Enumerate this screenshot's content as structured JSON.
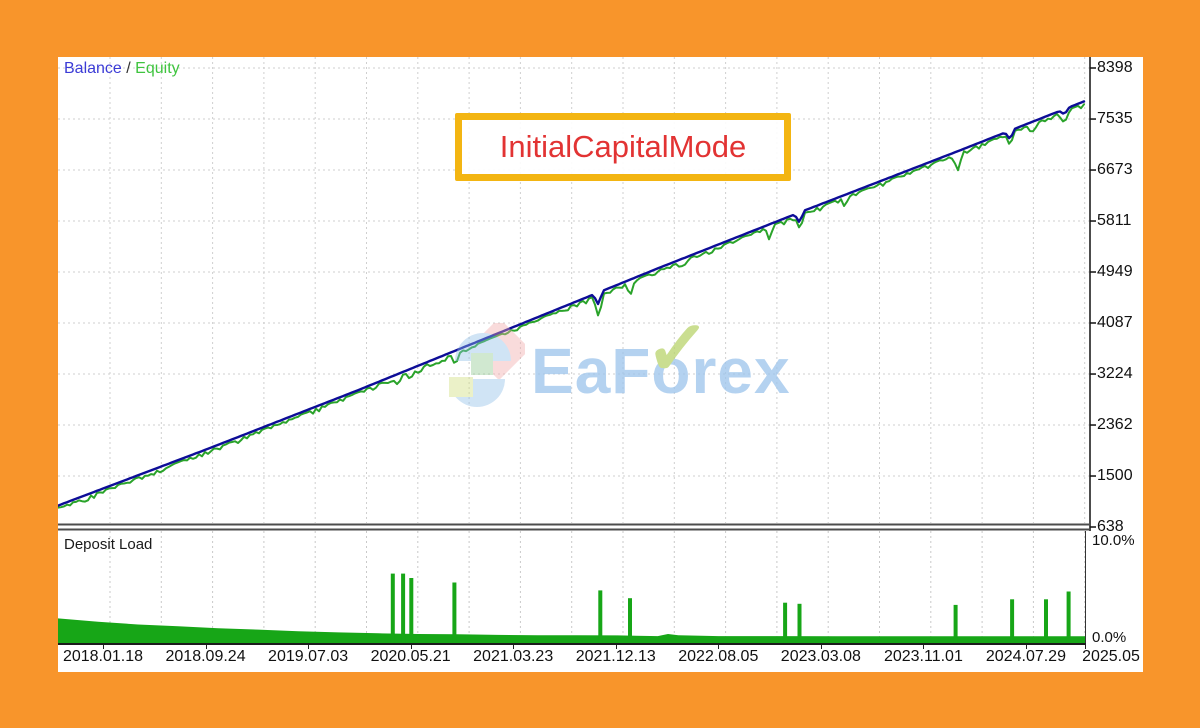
{
  "page": {
    "frame_color": "#f8952b",
    "panel_bg": "#ffffff"
  },
  "legend": {
    "balance": "Balance",
    "separator": " / ",
    "equity": "Equity",
    "balance_color": "#3b3bd6",
    "equity_color": "#3fc43f"
  },
  "overlay_box": {
    "label": "InitialCapitalMode",
    "text_color": "#e23333",
    "border_color": "#f3b512"
  },
  "watermark": {
    "part1": "EaF",
    "o_char": "o",
    "check_char": "✓",
    "part2": "rex",
    "text_color": "#9cc4ec",
    "check_color": "#b9d36b"
  },
  "deposit_panel": {
    "label": "Deposit Load",
    "max_label": "10.0%",
    "min_label": "0.0%"
  },
  "chart_data": {
    "type": "line",
    "title": "",
    "ylabel": "",
    "xlabel": "",
    "ylim": [
      638,
      8398
    ],
    "grid": true,
    "y_ticks": [
      8398,
      7535,
      6673,
      5811,
      4949,
      4087,
      3224,
      2362,
      1500,
      638
    ],
    "x_ticks": [
      "2018.01.18",
      "2018.09.24",
      "2019.07.03",
      "2020.05.21",
      "2021.03.23",
      "2021.12.13",
      "2022.08.05",
      "2023.03.08",
      "2023.11.01",
      "2024.07.29",
      "2025.05"
    ],
    "series": [
      {
        "name": "Balance",
        "color": "#0d0d97",
        "anchors": [
          [
            0,
            1000
          ],
          [
            0.146,
            1960
          ],
          [
            0.292,
            2950
          ],
          [
            0.438,
            3980
          ],
          [
            0.584,
            5010
          ],
          [
            0.73,
            6010
          ],
          [
            0.876,
            6990
          ],
          [
            1.0,
            7840
          ]
        ],
        "dips": [
          [
            0.526,
            200
          ],
          [
            0.722,
            170
          ],
          [
            0.927,
            150
          ],
          [
            0.98,
            90
          ]
        ]
      },
      {
        "name": "Equity",
        "color": "#2aa32a",
        "offset": -35,
        "dips": [
          [
            0.331,
            160
          ],
          [
            0.343,
            130
          ],
          [
            0.352,
            110
          ],
          [
            0.387,
            220
          ],
          [
            0.526,
            360
          ],
          [
            0.557,
            230
          ],
          [
            0.609,
            120
          ],
          [
            0.693,
            190
          ],
          [
            0.722,
            230
          ],
          [
            0.767,
            120
          ],
          [
            0.876,
            280
          ],
          [
            0.927,
            200
          ],
          [
            0.949,
            140
          ],
          [
            0.98,
            170
          ]
        ]
      }
    ],
    "deposit_load": {
      "name": "Deposit Load",
      "unit": "%",
      "ylim_pct": [
        0.0,
        10.0
      ],
      "color": "#17a617",
      "baseline_pct": [
        [
          0,
          2.2
        ],
        [
          0.039,
          1.9
        ],
        [
          0.078,
          1.65
        ],
        [
          0.117,
          1.5
        ],
        [
          0.156,
          1.32
        ],
        [
          0.195,
          1.2
        ],
        [
          0.234,
          1.05
        ],
        [
          0.273,
          0.95
        ],
        [
          0.312,
          0.87
        ],
        [
          0.351,
          0.8
        ],
        [
          0.389,
          0.78
        ],
        [
          0.428,
          0.72
        ],
        [
          0.467,
          0.7
        ],
        [
          0.506,
          0.7
        ],
        [
          0.545,
          0.68
        ],
        [
          0.584,
          0.62
        ],
        [
          0.594,
          0.8
        ],
        [
          0.604,
          0.7
        ],
        [
          0.643,
          0.62
        ],
        [
          0.701,
          0.62
        ],
        [
          0.76,
          0.6
        ],
        [
          0.818,
          0.6
        ],
        [
          0.876,
          0.6
        ],
        [
          0.935,
          0.6
        ],
        [
          1.0,
          0.6
        ]
      ],
      "spikes_pct": [
        [
          0.326,
          6.2
        ],
        [
          0.336,
          6.2
        ],
        [
          0.344,
          5.8
        ],
        [
          0.386,
          5.4
        ],
        [
          0.528,
          4.7
        ],
        [
          0.557,
          4.0
        ],
        [
          0.708,
          3.6
        ],
        [
          0.722,
          3.5
        ],
        [
          0.874,
          3.4
        ],
        [
          0.929,
          3.9
        ],
        [
          0.962,
          3.9
        ],
        [
          0.984,
          4.6
        ]
      ]
    }
  }
}
